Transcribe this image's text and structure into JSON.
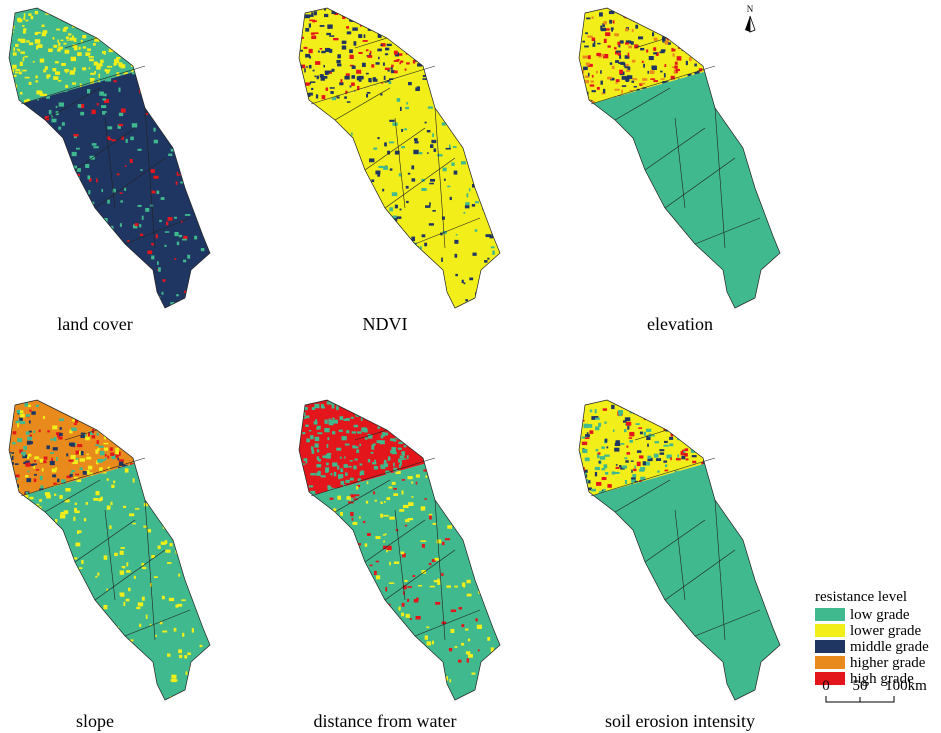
{
  "panels": [
    {
      "label": "land cover"
    },
    {
      "label": "NDVI"
    },
    {
      "label": "elevation"
    },
    {
      "label": "slope"
    },
    {
      "label": "distance from water"
    },
    {
      "label": "soil erosion intensity"
    }
  ],
  "north_arrow": "N",
  "legend": {
    "title": "resistance level",
    "items": [
      {
        "label": "low grade",
        "color": "#3fb98d"
      },
      {
        "label": "lower grade",
        "color": "#f2ee1a"
      },
      {
        "label": "middle grade",
        "color": "#1f3663"
      },
      {
        "label": "higher grade",
        "color": "#e88a1c"
      },
      {
        "label": "high grade",
        "color": "#e3161b"
      }
    ]
  },
  "scale_bar": {
    "labels": [
      "0",
      "50",
      "100km"
    ]
  }
}
